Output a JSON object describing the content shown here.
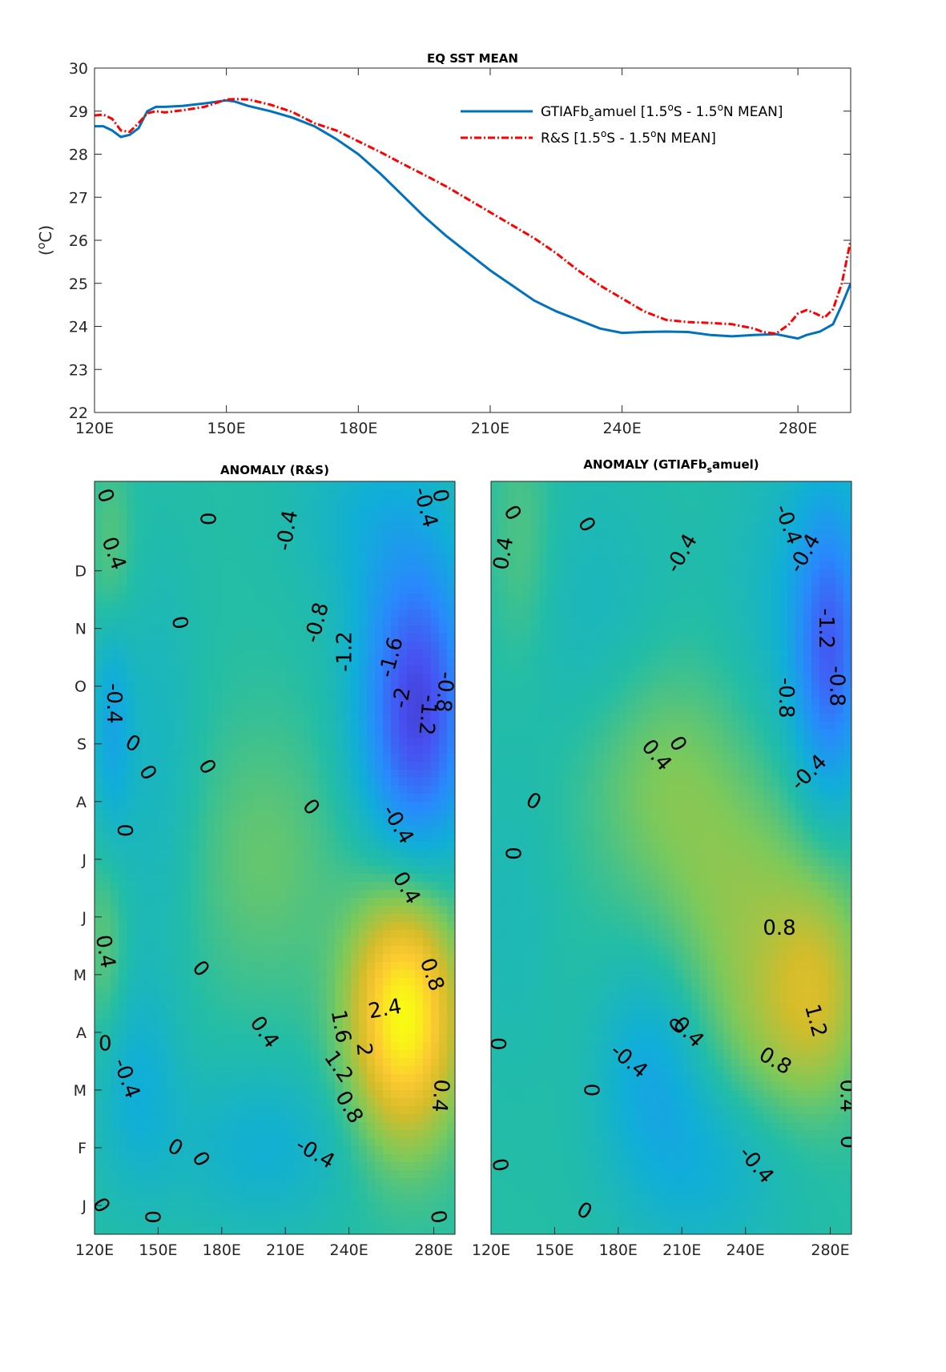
{
  "chart_data": [
    {
      "type": "line",
      "title": "EQ SST MEAN",
      "ylabel": "(°C)",
      "xlim": [
        120,
        292
      ],
      "ylim": [
        22,
        30
      ],
      "xticks": [
        120,
        150,
        180,
        210,
        240,
        280
      ],
      "xtick_labels": [
        "120E",
        "150E",
        "180E",
        "210E",
        "240E",
        "280E"
      ],
      "yticks": [
        22,
        23,
        24,
        25,
        26,
        27,
        28,
        29,
        30
      ],
      "legend_position": "top-right",
      "series": [
        {
          "name_main": "GTIAFb",
          "name_sub": "s",
          "name_rest": "amuel [1.5",
          "name_deg1": "o",
          "name_mid": "S - 1.5",
          "name_deg2": "o",
          "name_end": "N MEAN]",
          "color": "#0072BD",
          "style": "solid",
          "x": [
            120,
            122,
            124,
            126,
            128,
            130,
            132,
            134,
            136,
            140,
            145,
            150,
            152,
            155,
            160,
            165,
            170,
            175,
            180,
            185,
            190,
            195,
            200,
            205,
            210,
            215,
            220,
            225,
            230,
            235,
            240,
            245,
            250,
            255,
            260,
            265,
            270,
            275,
            280,
            282,
            285,
            288,
            290,
            292
          ],
          "y": [
            28.65,
            28.65,
            28.55,
            28.4,
            28.45,
            28.6,
            29.0,
            29.1,
            29.1,
            29.12,
            29.18,
            29.25,
            29.22,
            29.12,
            29.0,
            28.85,
            28.65,
            28.35,
            28.0,
            27.55,
            27.05,
            26.55,
            26.1,
            25.7,
            25.3,
            24.95,
            24.6,
            24.35,
            24.15,
            23.95,
            23.85,
            23.87,
            23.88,
            23.87,
            23.8,
            23.77,
            23.8,
            23.82,
            23.72,
            23.8,
            23.88,
            24.05,
            24.5,
            25.0
          ]
        },
        {
          "name_main": "R&S [1.5",
          "name_sub": "",
          "name_rest": "",
          "name_deg1": "o",
          "name_mid": "S - 1.5",
          "name_deg2": "o",
          "name_end": "N MEAN]",
          "color": "#FF0000",
          "style": "dashdot",
          "x": [
            120,
            122,
            124,
            126,
            128,
            130,
            132,
            134,
            136,
            140,
            145,
            150,
            152,
            155,
            160,
            165,
            170,
            175,
            180,
            185,
            190,
            195,
            200,
            205,
            210,
            215,
            220,
            225,
            230,
            235,
            240,
            245,
            250,
            255,
            260,
            265,
            270,
            272,
            275,
            278,
            280,
            282,
            284,
            286,
            288,
            290,
            292
          ],
          "y": [
            28.9,
            28.92,
            28.82,
            28.55,
            28.52,
            28.72,
            28.95,
            29.0,
            28.97,
            29.02,
            29.1,
            29.27,
            29.28,
            29.27,
            29.15,
            28.98,
            28.72,
            28.55,
            28.3,
            28.05,
            27.78,
            27.52,
            27.25,
            26.95,
            26.65,
            26.35,
            26.05,
            25.7,
            25.3,
            24.95,
            24.65,
            24.35,
            24.15,
            24.1,
            24.08,
            24.05,
            23.95,
            23.87,
            23.83,
            24.05,
            24.3,
            24.38,
            24.3,
            24.2,
            24.4,
            25.0,
            26.0
          ]
        }
      ]
    },
    {
      "type": "heatmap",
      "title": "ANOMALY (R&S)",
      "xlim": [
        120,
        290
      ],
      "xtick_labels": [
        "120E",
        "150E",
        "180E",
        "210E",
        "240E",
        "280E"
      ],
      "ytick_labels": [
        "D",
        "N",
        "O",
        "S",
        "A",
        "J",
        "J",
        "M",
        "A",
        "M",
        "F",
        "J"
      ],
      "colormap": "parula",
      "clim": [
        -2.6,
        2.6
      ],
      "blobs": [
        {
          "lon": 272,
          "month": 8.6,
          "amp": -2.15,
          "sx": 19,
          "sy": 1.9
        },
        {
          "lon": 266,
          "month": 3.3,
          "amp": 2.65,
          "sx": 18,
          "sy": 1.5
        },
        {
          "lon": 128,
          "month": 8.4,
          "amp": -0.75,
          "sx": 7,
          "sy": 1.5
        },
        {
          "lon": 150,
          "month": 7.5,
          "amp": -0.35,
          "sx": 14,
          "sy": 2.5
        },
        {
          "lon": 128,
          "month": 11.1,
          "amp": 0.45,
          "sx": 7,
          "sy": 1.2
        },
        {
          "lon": 125,
          "month": 4.5,
          "amp": 0.45,
          "sx": 7,
          "sy": 1.2
        },
        {
          "lon": 140,
          "month": 2.0,
          "amp": -0.55,
          "sx": 14,
          "sy": 1.3
        },
        {
          "lon": 200,
          "month": 1.0,
          "amp": -0.55,
          "sx": 30,
          "sy": 1.0
        },
        {
          "lon": 200,
          "month": 6.0,
          "amp": 0.45,
          "sx": 25,
          "sy": 1.6
        },
        {
          "lon": 250,
          "month": 12.0,
          "amp": -0.45,
          "sx": 25,
          "sy": 1.2
        }
      ],
      "contour_labels": [
        {
          "text": "0",
          "lon": 125,
          "month": 12.3,
          "angle": 70
        },
        {
          "text": "0.4",
          "lon": 129,
          "month": 11.3,
          "angle": 70
        },
        {
          "text": "-0.4",
          "lon": 129,
          "month": 8.7,
          "angle": 90
        },
        {
          "text": "0",
          "lon": 138,
          "month": 8.0,
          "angle": 30
        },
        {
          "text": "0",
          "lon": 145,
          "month": 7.5,
          "angle": 60
        },
        {
          "text": "0",
          "lon": 134,
          "month": 6.5,
          "angle": 90
        },
        {
          "text": "0",
          "lon": 173,
          "month": 7.6,
          "angle": 60
        },
        {
          "text": "0",
          "lon": 160,
          "month": 10.1,
          "angle": 80
        },
        {
          "text": "0",
          "lon": 173,
          "month": 11.9,
          "angle": 90
        },
        {
          "text": "-0.4",
          "lon": 211,
          "month": 11.7,
          "angle": -80
        },
        {
          "text": "-0.8",
          "lon": 225,
          "month": 10.1,
          "angle": -75
        },
        {
          "text": "-1.2",
          "lon": 238,
          "month": 9.6,
          "angle": -90
        },
        {
          "text": "-1.6",
          "lon": 260,
          "month": 9.5,
          "angle": -75
        },
        {
          "text": "-2",
          "lon": 265,
          "month": 8.8,
          "angle": -80
        },
        {
          "text": "-1.2",
          "lon": 277,
          "month": 8.5,
          "angle": 95
        },
        {
          "text": "-0.8",
          "lon": 285,
          "month": 8.9,
          "angle": 95
        },
        {
          "text": "-0.4",
          "lon": 276,
          "month": 12.1,
          "angle": 75
        },
        {
          "text": "0",
          "lon": 283,
          "month": 12.3,
          "angle": 80
        },
        {
          "text": "0",
          "lon": 222,
          "month": 6.9,
          "angle": 50
        },
        {
          "text": "-0.4",
          "lon": 263,
          "month": 6.6,
          "angle": 60
        },
        {
          "text": "0.4",
          "lon": 267,
          "month": 5.5,
          "angle": 60
        },
        {
          "text": "0.8",
          "lon": 279,
          "month": 4.0,
          "angle": 70
        },
        {
          "text": "0.4",
          "lon": 125,
          "month": 4.4,
          "angle": 80
        },
        {
          "text": "0",
          "lon": 125,
          "month": 2.8,
          "angle": 0
        },
        {
          "text": "-0.4",
          "lon": 135,
          "month": 2.2,
          "angle": 70
        },
        {
          "text": "0",
          "lon": 170,
          "month": 4.1,
          "angle": 50
        },
        {
          "text": "0.4",
          "lon": 200,
          "month": 3.0,
          "angle": 55
        },
        {
          "text": "1.6",
          "lon": 236,
          "month": 3.1,
          "angle": 80
        },
        {
          "text": "2.4",
          "lon": 257,
          "month": 3.4,
          "angle": -10
        },
        {
          "text": "2",
          "lon": 247,
          "month": 2.7,
          "angle": 85
        },
        {
          "text": "1.2",
          "lon": 235,
          "month": 2.4,
          "angle": 55
        },
        {
          "text": "0.8",
          "lon": 240,
          "month": 1.7,
          "angle": 60
        },
        {
          "text": "0.4",
          "lon": 283,
          "month": 1.9,
          "angle": 95
        },
        {
          "text": "-0.4",
          "lon": 224,
          "month": 0.9,
          "angle": 30
        },
        {
          "text": "0",
          "lon": 158,
          "month": 1.0,
          "angle": 30
        },
        {
          "text": "0",
          "lon": 170,
          "month": 0.8,
          "angle": 60
        },
        {
          "text": "0",
          "lon": 123,
          "month": 0.0,
          "angle": 60
        },
        {
          "text": "0",
          "lon": 147,
          "month": -0.2,
          "angle": 90
        },
        {
          "text": "0",
          "lon": 282,
          "month": -0.2,
          "angle": 80
        }
      ]
    },
    {
      "type": "heatmap",
      "title_main": "ANOMALY (GTIAFb",
      "title_sub": "s",
      "title_end": "amuel)",
      "xlim": [
        120,
        290
      ],
      "xtick_labels": [
        "120E",
        "150E",
        "180E",
        "210E",
        "240E",
        "280E"
      ],
      "colormap": "parula",
      "clim": [
        -2.6,
        2.6
      ],
      "blobs": [
        {
          "lon": 280,
          "month": 9.5,
          "amp": -1.45,
          "sx": 12,
          "sy": 1.8
        },
        {
          "lon": 270,
          "month": 10.5,
          "amp": -0.5,
          "sx": 25,
          "sy": 2.0
        },
        {
          "lon": 200,
          "month": 7.5,
          "amp": 0.6,
          "sx": 28,
          "sy": 1.4
        },
        {
          "lon": 240,
          "month": 5.3,
          "amp": 0.65,
          "sx": 30,
          "sy": 1.5
        },
        {
          "lon": 275,
          "month": 3.7,
          "amp": 0.95,
          "sx": 16,
          "sy": 1.3
        },
        {
          "lon": 250,
          "month": 3.0,
          "amp": 0.55,
          "sx": 22,
          "sy": 1.2
        },
        {
          "lon": 195,
          "month": 2.5,
          "amp": -0.65,
          "sx": 18,
          "sy": 1.3
        },
        {
          "lon": 220,
          "month": 0.7,
          "amp": -0.55,
          "sx": 28,
          "sy": 1.2
        },
        {
          "lon": 135,
          "month": 11.5,
          "amp": 0.35,
          "sx": 10,
          "sy": 1.5
        },
        {
          "lon": 170,
          "month": 10.0,
          "amp": -0.3,
          "sx": 25,
          "sy": 2.0
        },
        {
          "lon": 130,
          "month": 5.0,
          "amp": -0.2,
          "sx": 15,
          "sy": 2.0
        }
      ],
      "contour_labels": [
        {
          "text": "0",
          "lon": 130,
          "month": 12.0,
          "angle": 60
        },
        {
          "text": "0.4",
          "lon": 126,
          "month": 11.3,
          "angle": -80
        },
        {
          "text": "0",
          "lon": 165,
          "month": 11.8,
          "angle": 60
        },
        {
          "text": "-0.4",
          "lon": 210,
          "month": 11.3,
          "angle": -60
        },
        {
          "text": "-0.4",
          "lon": 260,
          "month": 11.8,
          "angle": 70
        },
        {
          "text": "-0.4",
          "lon": 268,
          "month": 11.3,
          "angle": -60
        },
        {
          "text": "-1.2",
          "lon": 278,
          "month": 10.0,
          "angle": 90
        },
        {
          "text": "-0.8",
          "lon": 283,
          "month": 9.0,
          "angle": 90
        },
        {
          "text": "-0.8",
          "lon": 259,
          "month": 8.8,
          "angle": 90
        },
        {
          "text": "-0.4",
          "lon": 270,
          "month": 7.5,
          "angle": -45
        },
        {
          "text": "0",
          "lon": 208,
          "month": 8.0,
          "angle": 60
        },
        {
          "text": "0.4",
          "lon": 198,
          "month": 7.8,
          "angle": 50
        },
        {
          "text": "0",
          "lon": 140,
          "month": 7.0,
          "angle": 30
        },
        {
          "text": "0",
          "lon": 130,
          "month": 6.1,
          "angle": 90
        },
        {
          "text": "0.8",
          "lon": 256,
          "month": 4.8,
          "angle": 0
        },
        {
          "text": "1.2",
          "lon": 273,
          "month": 3.2,
          "angle": 75
        },
        {
          "text": "0.8",
          "lon": 254,
          "month": 2.5,
          "angle": 30
        },
        {
          "text": "0.4",
          "lon": 213,
          "month": 3.0,
          "angle": 45
        },
        {
          "text": "0",
          "lon": 208,
          "month": 3.1,
          "angle": -45
        },
        {
          "text": "-0.4",
          "lon": 185,
          "month": 2.5,
          "angle": 40
        },
        {
          "text": "0",
          "lon": 167,
          "month": 2.0,
          "angle": 90
        },
        {
          "text": "0",
          "lon": 123,
          "month": 2.8,
          "angle": 90
        },
        {
          "text": "0.4",
          "lon": 288,
          "month": 1.9,
          "angle": 90
        },
        {
          "text": "0",
          "lon": 288,
          "month": 1.1,
          "angle": 90
        },
        {
          "text": "0",
          "lon": 124,
          "month": 0.7,
          "angle": 80
        },
        {
          "text": "-0.4",
          "lon": 245,
          "month": 0.7,
          "angle": 50
        },
        {
          "text": "0",
          "lon": 164,
          "month": -0.1,
          "angle": 30
        }
      ]
    }
  ]
}
